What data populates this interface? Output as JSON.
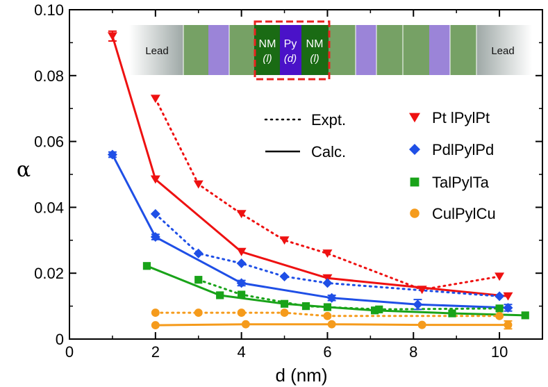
{
  "chart_data": {
    "type": "line",
    "xlabel": "d (nm)",
    "ylabel": "α",
    "xlim": [
      0,
      11
    ],
    "ylim": [
      0,
      0.1
    ],
    "x_ticks": [
      {
        "value": 0,
        "label": "0"
      },
      {
        "value": 2,
        "label": "2"
      },
      {
        "value": 4,
        "label": "4"
      },
      {
        "value": 6,
        "label": "6"
      },
      {
        "value": 8,
        "label": "8"
      },
      {
        "value": 10,
        "label": "10"
      }
    ],
    "y_ticks": [
      {
        "value": 0,
        "label": "0"
      },
      {
        "value": 0.02,
        "label": "0.02"
      },
      {
        "value": 0.04,
        "label": "0.04"
      },
      {
        "value": 0.06,
        "label": "0.06"
      },
      {
        "value": 0.08,
        "label": "0.08"
      },
      {
        "value": 0.1,
        "label": "0.10"
      }
    ],
    "legend_style": [
      {
        "label": "Expt.",
        "style": "dotted"
      },
      {
        "label": "Calc.",
        "style": "solid"
      }
    ],
    "legend_materials": [
      {
        "label": "Pt lPylPt",
        "color": "#ee1111",
        "marker": "triangle-down"
      },
      {
        "label": "PdlPylPd",
        "color": "#1f4fe6",
        "marker": "diamond"
      },
      {
        "label": "TalPylTa",
        "color": "#19a319",
        "marker": "square"
      },
      {
        "label": "CulPylCu",
        "color": "#f59b1c",
        "marker": "circle"
      }
    ],
    "series": [
      {
        "name": "Pt lPylPt",
        "kind": "Calc.",
        "color": "#ee1111",
        "marker": "triangle-down",
        "x": [
          1,
          2,
          4,
          6,
          10.2
        ],
        "y": [
          0.092,
          0.0485,
          0.0265,
          0.0185,
          0.013
        ],
        "err": [
          0.0015,
          0,
          0,
          0,
          0
        ]
      },
      {
        "name": "Pt lPylPt",
        "kind": "Expt.",
        "color": "#ee1111",
        "marker": "triangle-down",
        "x": [
          2,
          3,
          4,
          5,
          6,
          8.2,
          10
        ],
        "y": [
          0.073,
          0.047,
          0.038,
          0.03,
          0.026,
          0.015,
          0.019
        ]
      },
      {
        "name": "PdlPylPd",
        "kind": "Calc.",
        "color": "#1f4fe6",
        "marker": "diamond",
        "x": [
          1,
          2,
          4,
          6.1,
          8.1,
          10.2
        ],
        "y": [
          0.056,
          0.031,
          0.017,
          0.0125,
          0.0105,
          0.0095
        ],
        "err": [
          0.0008,
          0.0008,
          0.0008,
          0.0008,
          0.0015,
          0.001
        ]
      },
      {
        "name": "PdlPylPd",
        "kind": "Expt.",
        "color": "#1f4fe6",
        "marker": "diamond",
        "x": [
          2,
          3,
          4,
          5,
          6,
          10
        ],
        "y": [
          0.038,
          0.026,
          0.023,
          0.019,
          0.017,
          0.013
        ]
      },
      {
        "name": "TalPylTa",
        "kind": "Calc.",
        "color": "#19a319",
        "marker": "square",
        "x": [
          1.8,
          3.5,
          5,
          6,
          7.1,
          8.9,
          10.6
        ],
        "y": [
          0.0222,
          0.0133,
          0.0107,
          0.0097,
          0.0087,
          0.0078,
          0.0072
        ]
      },
      {
        "name": "TalPylTa",
        "kind": "Expt.",
        "color": "#19a319",
        "marker": "square",
        "x": [
          3,
          4,
          5.5,
          7.2,
          10
        ],
        "y": [
          0.018,
          0.0135,
          0.01,
          0.009,
          0.0093
        ]
      },
      {
        "name": "CulPylCu",
        "kind": "Calc.",
        "color": "#f59b1c",
        "marker": "circle",
        "x": [
          2,
          4.1,
          6.1,
          8.2,
          10.2
        ],
        "y": [
          0.0042,
          0.0045,
          0.0045,
          0.0043,
          0.0043
        ],
        "err": [
          0,
          0,
          0,
          0,
          0.0012
        ]
      },
      {
        "name": "CulPylCu",
        "kind": "Expt.",
        "color": "#f59b1c",
        "marker": "circle",
        "x": [
          2,
          3,
          4,
          5,
          6,
          10
        ],
        "y": [
          0.008,
          0.008,
          0.008,
          0.008,
          0.007,
          0.007
        ]
      }
    ],
    "inset": {
      "lead_left": "Lead",
      "lead_right": "Lead",
      "layers": [
        {
          "top": "NM",
          "bottom": "(l)"
        },
        {
          "top": "Py",
          "bottom": "(d)"
        },
        {
          "top": "NM",
          "bottom": "(l)"
        }
      ],
      "colors": {
        "nm_light": "#76a165",
        "py_light": "#9b84d8",
        "nm_dark": "#1a6b14",
        "py_dark": "#4a12c8",
        "highlight": "#e8231f"
      }
    }
  }
}
